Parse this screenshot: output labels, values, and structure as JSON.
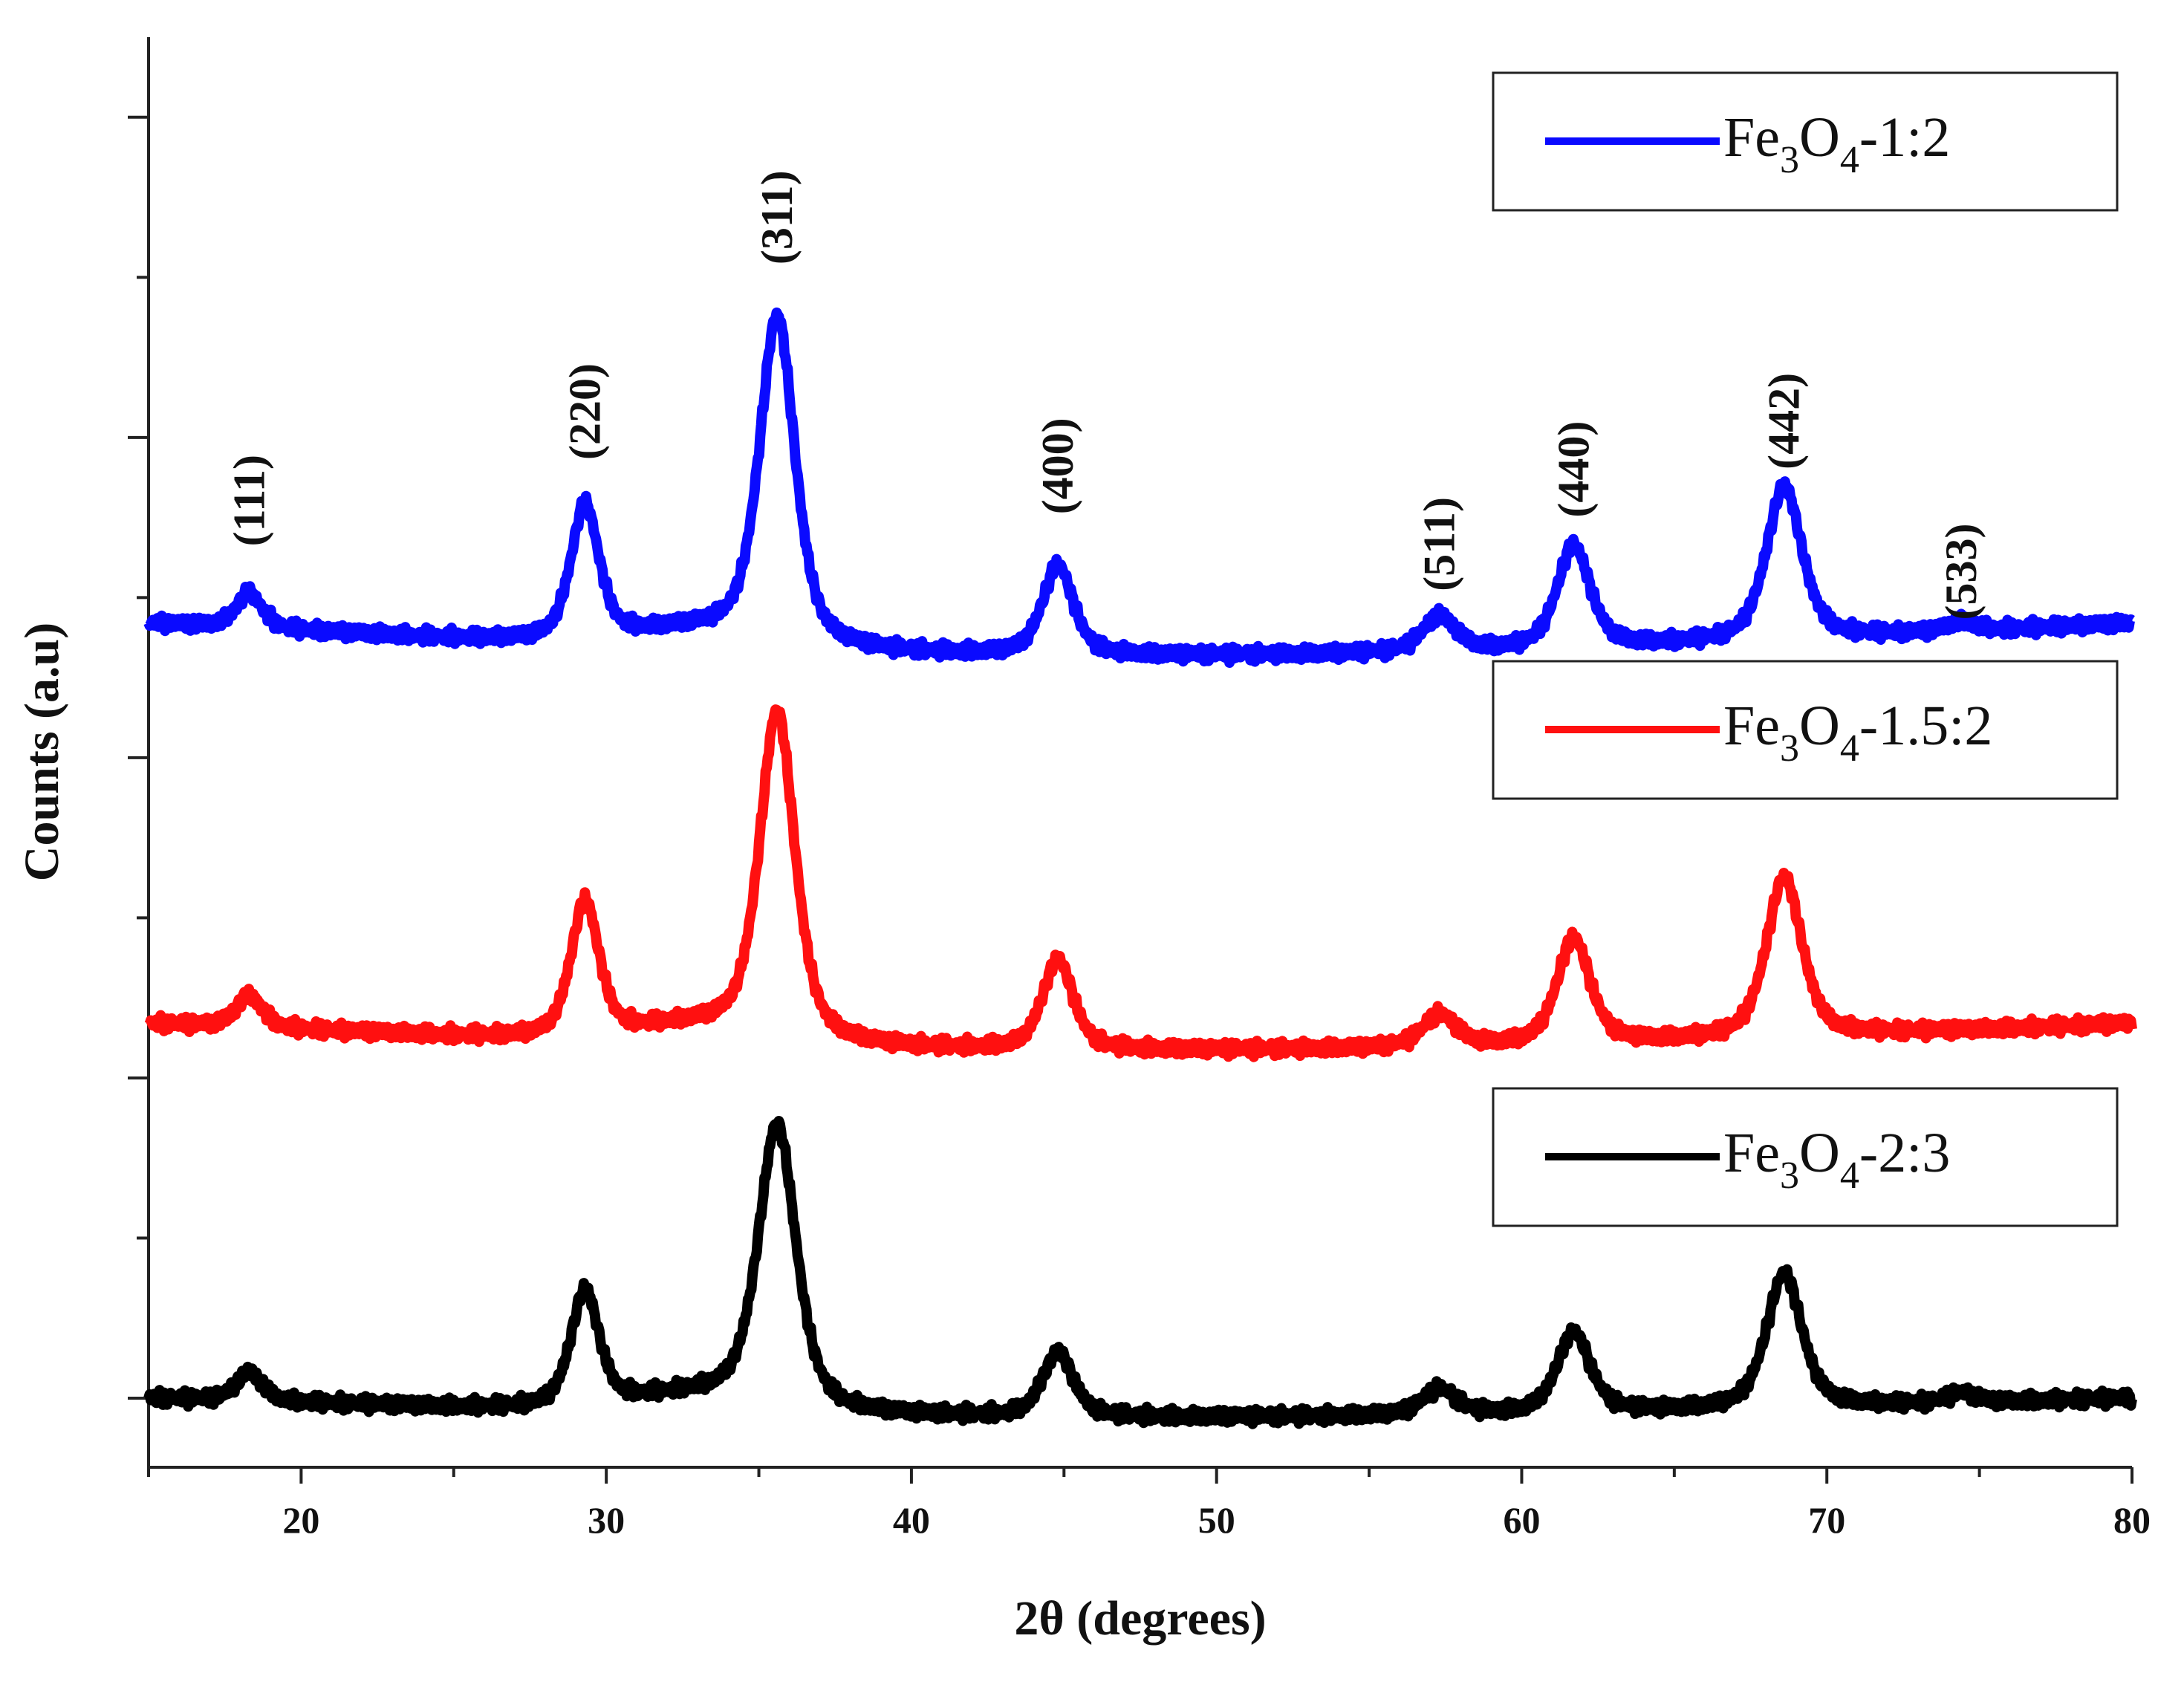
{
  "chart_data": {
    "type": "line",
    "title": "",
    "xlabel": "2θ (degrees)",
    "ylabel": "Counts (a.u)",
    "xlim": [
      15,
      80
    ],
    "xticks": [
      "20",
      "30",
      "40",
      "50",
      "60",
      "70",
      "80"
    ],
    "ylim": [
      0,
      4.25
    ],
    "y_ticks_labeled": false,
    "series": [
      {
        "name": "Fe3O4-1:2",
        "legend": {
          "prefix": "Fe",
          "sub1": "3",
          "mid": "O",
          "sub2": "4",
          "suffix": "-1:2"
        },
        "color": "#0a0aff",
        "offset": 2.42,
        "baseline_slope": -0.17,
        "peak_scale": 1.0,
        "peaks": [
          {
            "x": 18.3,
            "height": 0.11,
            "width": 0.55
          },
          {
            "x": 29.3,
            "height": 0.42,
            "width": 0.6
          },
          {
            "x": 35.6,
            "height": 1.02,
            "width": 0.75
          },
          {
            "x": 44.8,
            "height": 0.28,
            "width": 0.65
          },
          {
            "x": 57.3,
            "height": 0.11,
            "width": 0.7
          },
          {
            "x": 61.7,
            "height": 0.32,
            "width": 0.7
          },
          {
            "x": 68.6,
            "height": 0.48,
            "width": 0.75
          },
          {
            "x": 74.4,
            "height": 0.03,
            "width": 0.6
          }
        ]
      },
      {
        "name": "Fe3O4-1.5:2",
        "legend": {
          "prefix": "Fe",
          "sub1": "3",
          "mid": "O",
          "sub2": "4",
          "suffix": "-1.5:2"
        },
        "color": "#ff1010",
        "offset": 1.17,
        "baseline_slope": -0.14,
        "peak_scale": 1.0,
        "peaks": [
          {
            "x": 18.3,
            "height": 0.1,
            "width": 0.55
          },
          {
            "x": 29.3,
            "height": 0.42,
            "width": 0.6
          },
          {
            "x": 35.6,
            "height": 1.02,
            "width": 0.75
          },
          {
            "x": 44.8,
            "height": 0.28,
            "width": 0.65
          },
          {
            "x": 57.3,
            "height": 0.1,
            "width": 0.7
          },
          {
            "x": 61.7,
            "height": 0.33,
            "width": 0.7
          },
          {
            "x": 68.6,
            "height": 0.5,
            "width": 0.75
          }
        ]
      },
      {
        "name": "Fe3O4-2:3",
        "legend": {
          "prefix": "Fe",
          "sub1": "3",
          "mid": "O",
          "sub2": "4",
          "suffix": "-2:3"
        },
        "color": "#000000",
        "offset": 0.0,
        "baseline_slope": -0.1,
        "peak_scale": 1.0,
        "peaks": [
          {
            "x": 18.3,
            "height": 0.09,
            "width": 0.55
          },
          {
            "x": 29.3,
            "height": 0.36,
            "width": 0.6
          },
          {
            "x": 35.6,
            "height": 0.88,
            "width": 0.8
          },
          {
            "x": 44.8,
            "height": 0.2,
            "width": 0.65
          },
          {
            "x": 57.3,
            "height": 0.08,
            "width": 0.7
          },
          {
            "x": 61.7,
            "height": 0.25,
            "width": 0.7
          },
          {
            "x": 68.6,
            "height": 0.42,
            "width": 0.75
          },
          {
            "x": 74.4,
            "height": 0.03,
            "width": 0.6
          }
        ]
      }
    ],
    "annotations": [
      {
        "text": "(111)",
        "x": 18.3,
        "y": 2.66
      },
      {
        "text": "(220)",
        "x": 29.3,
        "y": 2.93
      },
      {
        "text": "(311)",
        "x": 35.6,
        "y": 3.54
      },
      {
        "text": "(400)",
        "x": 44.8,
        "y": 2.76
      },
      {
        "text": "(511)",
        "x": 57.3,
        "y": 2.52
      },
      {
        "text": "(440)",
        "x": 61.7,
        "y": 2.75
      },
      {
        "text": "(442)",
        "x": 68.6,
        "y": 2.9
      },
      {
        "text": "(533)",
        "x": 74.4,
        "y": 2.43
      }
    ],
    "legend_position": "right, one box beside each curve"
  }
}
